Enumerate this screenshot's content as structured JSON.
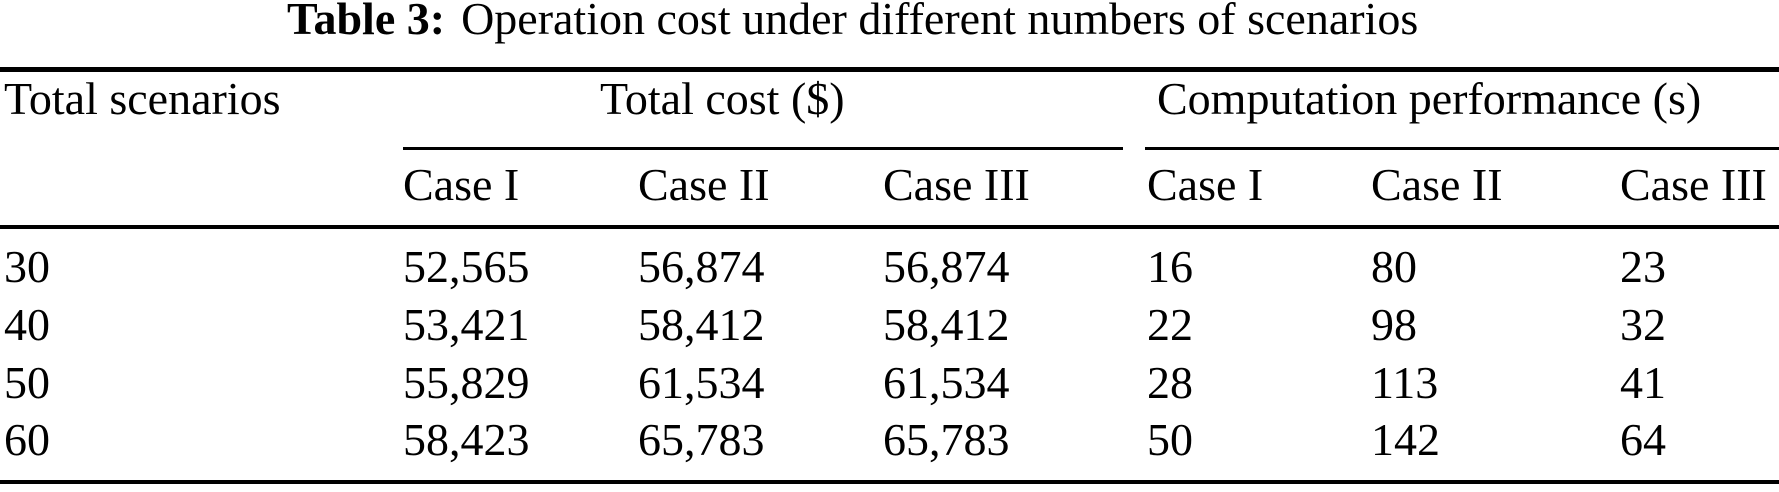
{
  "caption": {
    "label": "Table 3:",
    "text": "Operation cost under different numbers of scenarios"
  },
  "table": {
    "corner_header": "Total scenarios",
    "groups": [
      {
        "label": "Total cost ($)",
        "subcolumns": [
          "Case I",
          "Case II",
          "Case III"
        ]
      },
      {
        "label": "Computation performance (s)",
        "subcolumns": [
          "Case I",
          "Case II",
          "Case III"
        ]
      }
    ],
    "rows": [
      {
        "scenarios": "30",
        "cost": [
          "52,565",
          "56,874",
          "56,874"
        ],
        "perf": [
          "16",
          "80",
          "23"
        ]
      },
      {
        "scenarios": "40",
        "cost": [
          "53,421",
          "58,412",
          "58,412"
        ],
        "perf": [
          "22",
          "98",
          "32"
        ]
      },
      {
        "scenarios": "50",
        "cost": [
          "55,829",
          "61,534",
          "61,534"
        ],
        "perf": [
          "28",
          "113",
          "41"
        ]
      },
      {
        "scenarios": "60",
        "cost": [
          "58,423",
          "65,783",
          "65,783"
        ],
        "perf": [
          "50",
          "142",
          "64"
        ]
      }
    ]
  },
  "colors": {
    "text": "#000000",
    "background": "#ffffff",
    "rule": "#000000"
  }
}
